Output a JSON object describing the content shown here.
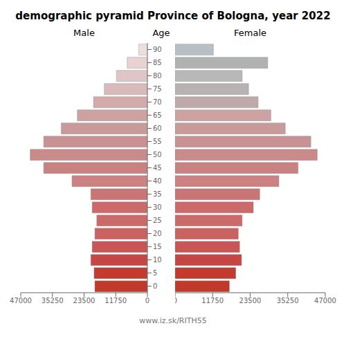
{
  "chart_data": {
    "type": "bar",
    "orientation": "horizontal",
    "title": "demographic pyramid Province of Bologna, year 2022",
    "ylabel": "Age",
    "annotations": [
      "www.iz.sk/RITH55"
    ],
    "categories": [
      "0",
      "5",
      "10",
      "15",
      "20",
      "25",
      "30",
      "35",
      "40",
      "45",
      "50",
      "55",
      "60",
      "65",
      "70",
      "75",
      "80",
      "85",
      "90"
    ],
    "series": [
      {
        "name": "Male",
        "colors": [
          "#c0392b",
          "#c23b2e",
          "#c64545",
          "#c95555",
          "#cb6262",
          "#cc6a6a",
          "#cc6a6a",
          "#c97575",
          "#cc8282",
          "#c98282",
          "#c98a8a",
          "#c89292",
          "#c89a9a",
          "#cca2a2",
          "#d4aaaa",
          "#d8baba",
          "#dfc6c6",
          "#e8d2d2",
          "#eedede"
        ],
        "values": [
          19500,
          19800,
          21000,
          20500,
          19500,
          18800,
          20500,
          21000,
          28000,
          38500,
          43500,
          38500,
          32000,
          26000,
          20000,
          16000,
          11500,
          7500,
          3200
        ]
      },
      {
        "name": "Female",
        "colors": [
          "#c0392b",
          "#c23b2e",
          "#c64545",
          "#c95555",
          "#cb6262",
          "#cc6a6a",
          "#cc6a6a",
          "#c97575",
          "#cc8282",
          "#c98282",
          "#c98a8a",
          "#c89292",
          "#c89a9a",
          "#cca2a2",
          "#bfaaaa",
          "#b8b2b2",
          "#b8b8b8",
          "#b0b2b2",
          "#b8c0c5"
        ],
        "values": [
          17000,
          19000,
          20800,
          20200,
          19800,
          21000,
          24500,
          26500,
          32500,
          38500,
          44500,
          42500,
          34500,
          30000,
          26000,
          23000,
          21000,
          29000,
          12000
        ]
      }
    ],
    "xlim": [
      0,
      47000
    ],
    "xticks": [
      0,
      11750,
      23500,
      35250,
      47000
    ],
    "grid": false
  }
}
